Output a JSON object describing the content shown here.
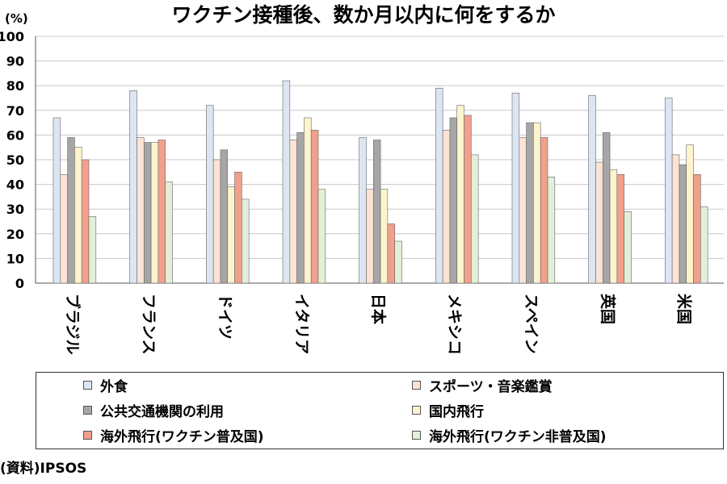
{
  "chart_data": {
    "type": "bar",
    "title": "ワクチン接種後、数か月以内に何をするか",
    "ylabel": "(%)",
    "ylim": [
      0,
      100
    ],
    "yticks": [
      "0",
      "10",
      "20",
      "30",
      "40",
      "50",
      "60",
      "70",
      "80",
      "90",
      "100"
    ],
    "grid": true,
    "legend_position": "bottom",
    "categories": [
      "ブラジル",
      "フランス",
      "ドイツ",
      "イタリア",
      "日本",
      "メキシコ",
      "スペイン",
      "英国",
      "米国"
    ],
    "series": [
      {
        "name": "外食",
        "color": "#dce6f2",
        "values": [
          67,
          78,
          72,
          82,
          59,
          79,
          77,
          76,
          75
        ]
      },
      {
        "name": "スポーツ・音楽鑑賞",
        "color": "#fbe3d6",
        "values": [
          44,
          59,
          50,
          58,
          38,
          62,
          59,
          49,
          52
        ]
      },
      {
        "name": "公共交通機関の利用",
        "color": "#a6a6a6",
        "values": [
          59,
          57,
          54,
          61,
          58,
          67,
          65,
          61,
          48
        ]
      },
      {
        "name": "国内飛行",
        "color": "#fdf3cd",
        "values": [
          55,
          57,
          39,
          67,
          38,
          72,
          65,
          46,
          56
        ]
      },
      {
        "name": "海外飛行(ワクチン普及国)",
        "color": "#f1a08c",
        "values": [
          50,
          58,
          45,
          62,
          24,
          68,
          59,
          44,
          44
        ]
      },
      {
        "name": "海外飛行(ワクチン非普及国)",
        "color": "#e2efd9",
        "values": [
          27,
          41,
          34,
          38,
          17,
          52,
          43,
          29,
          31
        ]
      }
    ]
  },
  "source": "(資料)IPSOS"
}
